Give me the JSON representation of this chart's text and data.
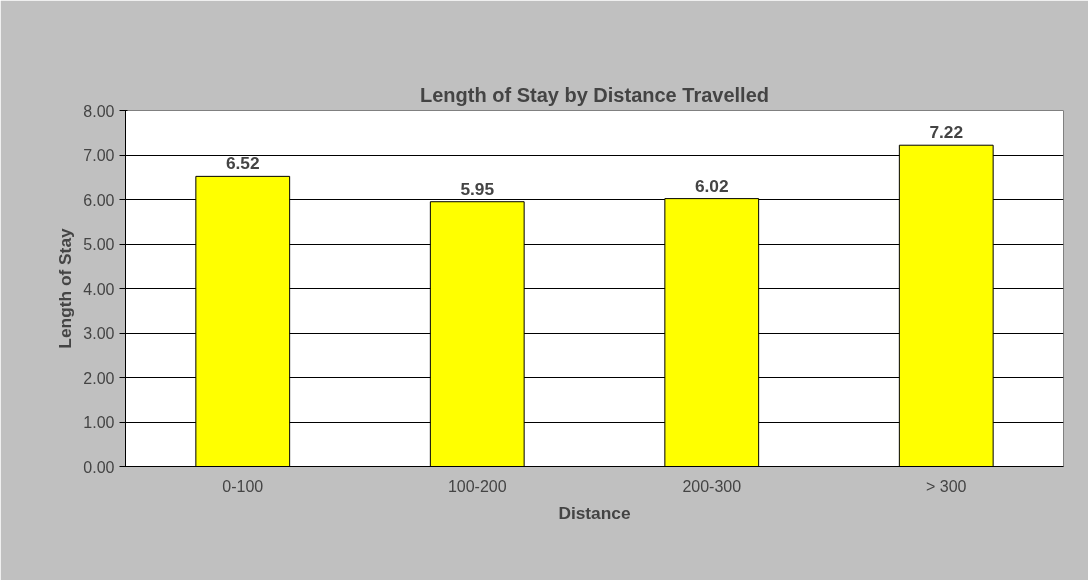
{
  "chart_data": {
    "type": "bar",
    "title": "Length of Stay by Distance Travelled",
    "xlabel": "Distance",
    "ylabel": "Length of Stay",
    "categories": [
      "0-100",
      "100-200",
      "200-300",
      "> 300"
    ],
    "values": [
      6.52,
      5.95,
      6.02,
      7.22
    ],
    "color": "#ffff00",
    "ylim": [
      0,
      8
    ],
    "yticks": [
      {
        "value": 0,
        "label": "0.00"
      },
      {
        "value": 1,
        "label": "1.00"
      },
      {
        "value": 2,
        "label": "2.00"
      },
      {
        "value": 3,
        "label": "3.00"
      },
      {
        "value": 4,
        "label": "4.00"
      },
      {
        "value": 5,
        "label": "5.00"
      },
      {
        "value": 6,
        "label": "6.00"
      },
      {
        "value": 7,
        "label": "7.00"
      },
      {
        "value": 8,
        "label": "8.00"
      }
    ],
    "grid": "y",
    "data_labels": true
  }
}
